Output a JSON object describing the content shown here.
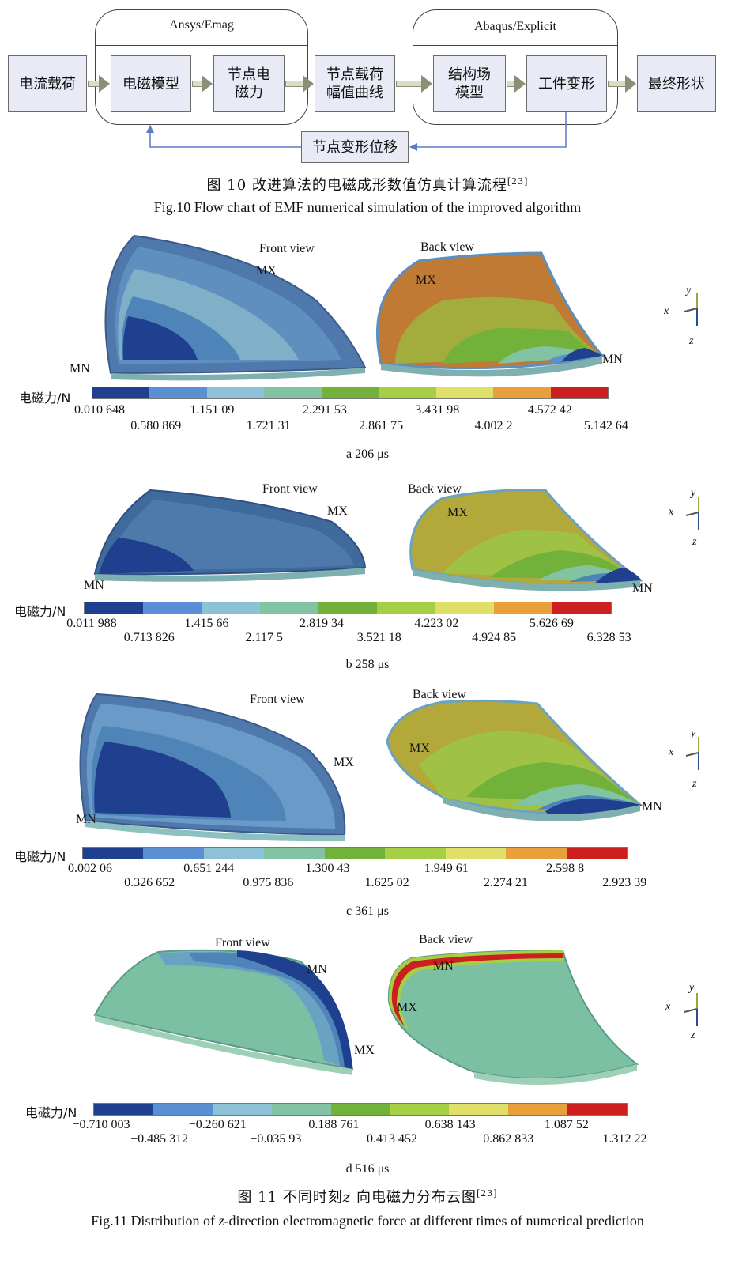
{
  "fig10": {
    "boxes": {
      "current_load": "电流载荷",
      "em_model": "电磁模型",
      "node_em_force": [
        "节点电",
        "磁力"
      ],
      "node_load_curve": [
        "节点载荷",
        "幅值曲线"
      ],
      "structure_model": [
        "结构场",
        "模型"
      ],
      "workpiece_deform": "工件变形",
      "final_shape": "最终形状",
      "node_displacement": "节点变形位移"
    },
    "group_left_title": "Ansys/Emag",
    "group_right_title": "Abaqus/Explicit",
    "caption_cn_prefix": "图 10 改进算法的电磁成形数值仿真计算流程",
    "caption_cn_ref": "[23]",
    "caption_en": "Fig.10 Flow chart of EMF numerical simulation of the improved algorithm"
  },
  "colors": {
    "scale": [
      "#1f3f8f",
      "#5b8fd4",
      "#8cc1d8",
      "#82c3a4",
      "#72b23a",
      "#a7cf45",
      "#dfe06a",
      "#e8a03a",
      "#cc1f1f"
    ]
  },
  "panels": [
    {
      "front_view": "Front view",
      "back_view": "Back view",
      "mx": "MX",
      "mn": "MN",
      "cbar_title": "电磁力/N",
      "ticks": [
        "0.010 648",
        "0.580 869",
        "1.151 09",
        "1.721 31",
        "2.291 53",
        "2.861 75",
        "3.431 98",
        "4.002 2",
        "4.572 42",
        "5.142 64"
      ],
      "caption": "a 206 μs"
    },
    {
      "front_view": "Front view",
      "back_view": "Back view",
      "mx": "MX",
      "mn": "MN",
      "cbar_title": "电磁力/N",
      "ticks": [
        "0.011 988",
        "0.713 826",
        "1.415 66",
        "2.117 5",
        "2.819 34",
        "3.521 18",
        "4.223 02",
        "4.924 85",
        "5.626 69",
        "6.328 53"
      ],
      "caption": "b 258 μs"
    },
    {
      "front_view": "Front view",
      "back_view": "Back view",
      "mx": "MX",
      "mn": "MN",
      "cbar_title": "电磁力/N",
      "ticks": [
        "0.002 06",
        "0.326 652",
        "0.651 244",
        "0.975 836",
        "1.300 43",
        "1.625 02",
        "1.949 61",
        "2.274 21",
        "2.598 8",
        "2.923 39"
      ],
      "caption": "c 361 μs"
    },
    {
      "front_view": "Front view",
      "back_view": "Back view",
      "mx": "MX",
      "mn": "MN",
      "cbar_title": "电磁力/N",
      "ticks": [
        "−0.710 003",
        "−0.485 312",
        "−0.260 621",
        "−0.035 93",
        "0.188 761",
        "0.413 452",
        "0.638 143",
        "0.862 833",
        "1.087 52",
        "1.312 22"
      ],
      "caption": "d 516 μs"
    }
  ],
  "axes": {
    "x": "x",
    "y": "y",
    "z": "z"
  },
  "fig11": {
    "caption_cn_prefix": "图 11 不同时刻",
    "caption_cn_z": "z",
    "caption_cn_suffix": " 向电磁力分布云图",
    "caption_cn_ref": "[23]",
    "caption_en_prefix": "Fig.11 Distribution of ",
    "caption_en_z": "z",
    "caption_en_suffix": "-direction electromagnetic force at different times of numerical prediction"
  }
}
